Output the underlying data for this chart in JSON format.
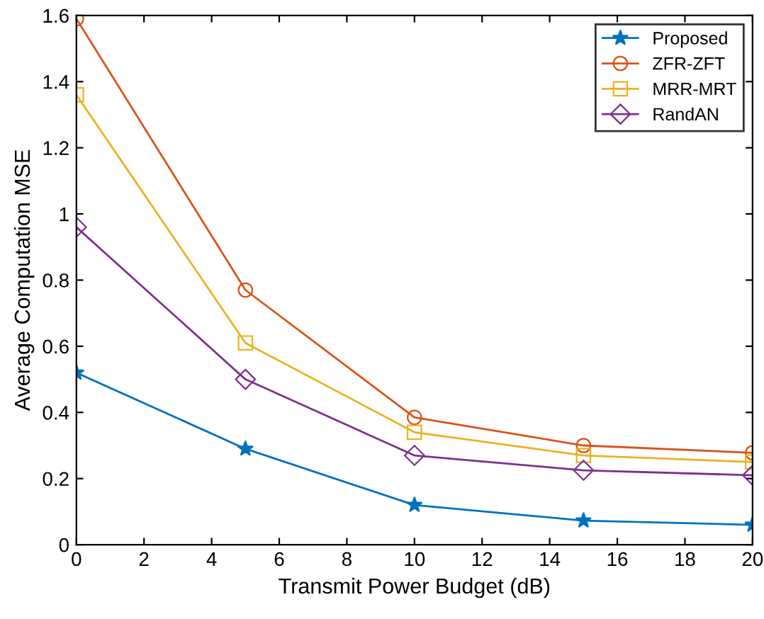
{
  "chart_data": {
    "type": "line",
    "xlabel": "Transmit Power Budget (dB)",
    "ylabel": "Average Computation MSE",
    "x": [
      0,
      5,
      10,
      15,
      20
    ],
    "series": [
      {
        "name": "Proposed",
        "color": "#0072bd",
        "marker": "star",
        "values": [
          0.52,
          0.29,
          0.12,
          0.073,
          0.06
        ]
      },
      {
        "name": "ZFR-ZFT",
        "color": "#d95319",
        "marker": "circle",
        "values": [
          1.59,
          0.77,
          0.385,
          0.3,
          0.278
        ]
      },
      {
        "name": "MRR-MRT",
        "color": "#edb120",
        "marker": "square",
        "values": [
          1.36,
          0.61,
          0.34,
          0.27,
          0.25
        ]
      },
      {
        "name": "RandAN",
        "color": "#7e2f8e",
        "marker": "diamond",
        "values": [
          0.96,
          0.5,
          0.27,
          0.225,
          0.21
        ]
      }
    ],
    "xlim": [
      0,
      20
    ],
    "xticks": [
      0,
      2,
      4,
      6,
      8,
      10,
      12,
      14,
      16,
      18,
      20
    ],
    "ylim": [
      0,
      1.6
    ],
    "yticks": [
      0,
      0.2,
      0.4,
      0.6,
      0.8,
      1,
      1.2,
      1.4,
      1.6
    ],
    "grid": false,
    "legend": "top right",
    "line_style": "solid"
  }
}
